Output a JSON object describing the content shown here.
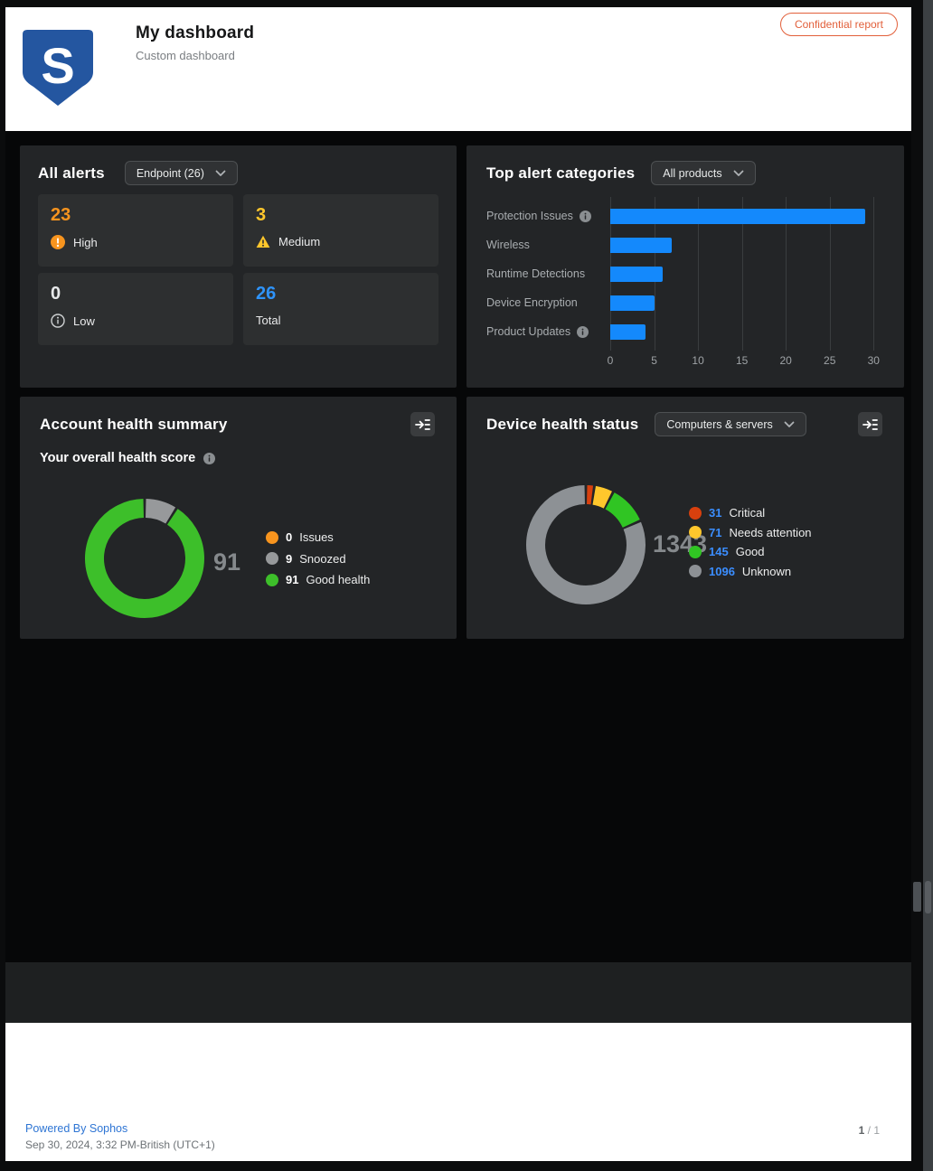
{
  "header": {
    "title": "My dashboard",
    "subtitle": "Custom dashboard",
    "badge": "Confidential report",
    "logo_letter": "S"
  },
  "all_alerts": {
    "title": "All alerts",
    "filter": "Endpoint (26)",
    "cards": [
      {
        "value": "23",
        "label": "High",
        "icon": "exclamation-circle",
        "color": "#f7941e"
      },
      {
        "value": "3",
        "label": "Medium",
        "icon": "warning-triangle",
        "color": "#ffc72c"
      },
      {
        "value": "0",
        "label": "Low",
        "icon": "info-circle-outline",
        "color": "#e7e9ea"
      },
      {
        "value": "26",
        "label": "Total",
        "icon": "none",
        "color": "#2e93fa"
      }
    ]
  },
  "top_alerts": {
    "title": "Top alert categories",
    "filter": "All products"
  },
  "account_health": {
    "title": "Account health summary",
    "subtitle": "Your overall health score",
    "score": "91"
  },
  "device_health": {
    "title": "Device health status",
    "filter": "Computers & servers",
    "total": "1343"
  },
  "footer": {
    "powered_by": "Powered By Sophos",
    "timestamp": "Sep 30, 2024, 3:32 PM-British (UTC+1)",
    "page_current": "1",
    "page_sep": "/",
    "page_total": "1"
  },
  "chart_data": [
    {
      "id": "top-alert-categories",
      "type": "bar",
      "orientation": "horizontal",
      "title": "Top alert categories",
      "categories": [
        "Protection Issues",
        "Wireless",
        "Runtime Detections",
        "Device Encryption",
        "Product Updates"
      ],
      "values": [
        29,
        7,
        6,
        5,
        4
      ],
      "info_icons": [
        true,
        false,
        false,
        false,
        true
      ],
      "bar_color": "#1489fc",
      "xlabel": "",
      "ylabel": "",
      "xlim": [
        0,
        31
      ],
      "ticks": [
        0,
        5,
        10,
        15,
        20,
        25,
        30
      ],
      "grid": true,
      "legend": "none"
    },
    {
      "id": "account-health-donut",
      "type": "pie",
      "donut": true,
      "title": "Your overall health score",
      "center_value": "91",
      "legend_number_color": "#ffffff",
      "segments": [
        {
          "label": "Issues",
          "value": 0,
          "color": "#f7941e"
        },
        {
          "label": "Snoozed",
          "value": 9,
          "color": "#97999b"
        },
        {
          "label": "Good health",
          "value": 91,
          "color": "#3dbf2a"
        }
      ]
    },
    {
      "id": "device-health-donut",
      "type": "pie",
      "donut": true,
      "title": "Device health status",
      "center_value": "1343",
      "legend_number_color": "#3b8eff",
      "segments": [
        {
          "label": "Critical",
          "value": 31,
          "color": "#d8400e"
        },
        {
          "label": "Needs attention",
          "value": 71,
          "color": "#ffc72c"
        },
        {
          "label": "Good",
          "value": 145,
          "color": "#30c523"
        },
        {
          "label": "Unknown",
          "value": 1096,
          "color": "#8d9195"
        }
      ]
    }
  ]
}
